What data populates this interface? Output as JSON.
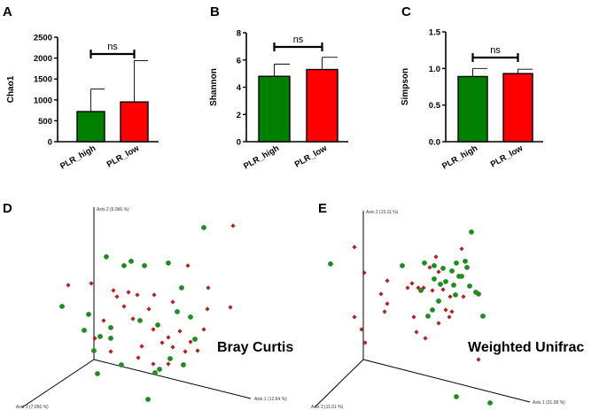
{
  "chart_data": [
    {
      "panel": "A",
      "type": "bar",
      "ylabel": "Chao1",
      "categories": [
        "PLR_high",
        "PLR_low"
      ],
      "values": [
        720,
        950
      ],
      "errors": [
        540,
        990
      ],
      "ylim": [
        0,
        2500
      ],
      "yticks": [
        "0",
        "500",
        "1000",
        "1500",
        "2000",
        "2500"
      ],
      "colors": [
        "#008000",
        "#ff0000"
      ],
      "annotation": "ns"
    },
    {
      "panel": "B",
      "type": "bar",
      "ylabel": "Shannon",
      "categories": [
        "PLR_high",
        "PLR_low"
      ],
      "values": [
        4.8,
        5.3
      ],
      "errors": [
        0.9,
        0.9
      ],
      "ylim": [
        0,
        8
      ],
      "yticks": [
        "0",
        "2",
        "4",
        "6",
        "8"
      ],
      "colors": [
        "#008000",
        "#ff0000"
      ],
      "annotation": "ns"
    },
    {
      "panel": "C",
      "type": "bar",
      "ylabel": "Simpson",
      "categories": [
        "PLR_high",
        "PLR_low"
      ],
      "values": [
        0.89,
        0.93
      ],
      "errors": [
        0.11,
        0.06
      ],
      "ylim": [
        0,
        1.5
      ],
      "yticks": [
        "0.0",
        "0.5",
        "1.0",
        "1.5"
      ],
      "colors": [
        "#008000",
        "#ff0000"
      ],
      "annotation": "ns"
    },
    {
      "panel": "D",
      "type": "scatter",
      "label": "Bray Curtis",
      "axis1": "Axis 1 (12.64 %)",
      "axis2": "Axis 2 (6.966 %)",
      "axis3": "Axis 3 (7.056 %)",
      "green": [
        [
          230,
          257
        ],
        [
          148,
          295
        ],
        [
          163,
          300
        ],
        [
          190,
          297
        ],
        [
          120,
          290
        ],
        [
          205,
          325
        ],
        [
          140,
          300
        ],
        [
          70,
          346
        ],
        [
          100,
          355
        ],
        [
          125,
          370
        ],
        [
          95,
          373
        ],
        [
          200,
          352
        ],
        [
          158,
          362
        ],
        [
          215,
          358
        ],
        [
          113,
          380
        ],
        [
          125,
          382
        ],
        [
          178,
          367
        ],
        [
          106,
          396
        ],
        [
          220,
          383
        ],
        [
          207,
          412
        ],
        [
          192,
          405
        ],
        [
          180,
          417
        ],
        [
          175,
          421
        ],
        [
          137,
          412
        ],
        [
          110,
          422
        ],
        [
          167,
          451
        ]
      ],
      "red": [
        [
          263,
          255
        ],
        [
          212,
          300
        ],
        [
          103,
          320
        ],
        [
          77,
          322
        ],
        [
          235,
          325
        ],
        [
          145,
          330
        ],
        [
          128,
          328
        ],
        [
          132,
          335
        ],
        [
          155,
          333
        ],
        [
          174,
          333
        ],
        [
          195,
          341
        ],
        [
          140,
          346
        ],
        [
          260,
          347
        ],
        [
          168,
          349
        ],
        [
          234,
          349
        ],
        [
          117,
          362
        ],
        [
          150,
          360
        ],
        [
          173,
          372
        ],
        [
          203,
          374
        ],
        [
          230,
          372
        ],
        [
          190,
          381
        ],
        [
          107,
          382
        ],
        [
          125,
          397
        ],
        [
          160,
          391
        ],
        [
          215,
          386
        ],
        [
          183,
          387
        ],
        [
          195,
          392
        ],
        [
          209,
          397
        ],
        [
          223,
          396
        ],
        [
          156,
          404
        ],
        [
          190,
          411
        ],
        [
          173,
          411
        ]
      ]
    },
    {
      "panel": "E",
      "type": "scatter",
      "label": "Weighted Unifrac",
      "axis1": "Axis 1 (31.08 %)",
      "axis2": "Axis 2 (15.11 %)",
      "axis3": "Axis 3 (11.61 %)",
      "green": [
        [
          532,
          262
        ],
        [
          373,
          298
        ],
        [
          454,
          300
        ],
        [
          479,
          297
        ],
        [
          490,
          300
        ],
        [
          515,
          297
        ],
        [
          525,
          295
        ],
        [
          500,
          303
        ],
        [
          510,
          306
        ],
        [
          527,
          302
        ],
        [
          518,
          312
        ],
        [
          490,
          315
        ],
        [
          497,
          321
        ],
        [
          503,
          318
        ],
        [
          512,
          322
        ],
        [
          521,
          312
        ],
        [
          530,
          323
        ],
        [
          537,
          330
        ],
        [
          540,
          332
        ],
        [
          514,
          333
        ],
        [
          495,
          340
        ],
        [
          475,
          328
        ],
        [
          488,
          350
        ],
        [
          483,
          357
        ],
        [
          545,
          357
        ],
        [
          553,
          455
        ],
        [
          515,
          448
        ]
      ],
      "red": [
        [
          521,
          281
        ],
        [
          400,
          279
        ],
        [
          492,
          290
        ],
        [
          485,
          302
        ],
        [
          411,
          308
        ],
        [
          495,
          307
        ],
        [
          437,
          317
        ],
        [
          465,
          320
        ],
        [
          460,
          325
        ],
        [
          472,
          325
        ],
        [
          478,
          325
        ],
        [
          500,
          327
        ],
        [
          488,
          328
        ],
        [
          508,
          335
        ],
        [
          430,
          332
        ],
        [
          523,
          335
        ],
        [
          437,
          343
        ],
        [
          434,
          352
        ],
        [
          503,
          350
        ],
        [
          510,
          352
        ],
        [
          400,
          358
        ],
        [
          467,
          358
        ],
        [
          507,
          358
        ],
        [
          495,
          365
        ],
        [
          408,
          372
        ],
        [
          470,
          375
        ],
        [
          480,
          382
        ],
        [
          412,
          387
        ],
        [
          540,
          406
        ]
      ]
    }
  ]
}
